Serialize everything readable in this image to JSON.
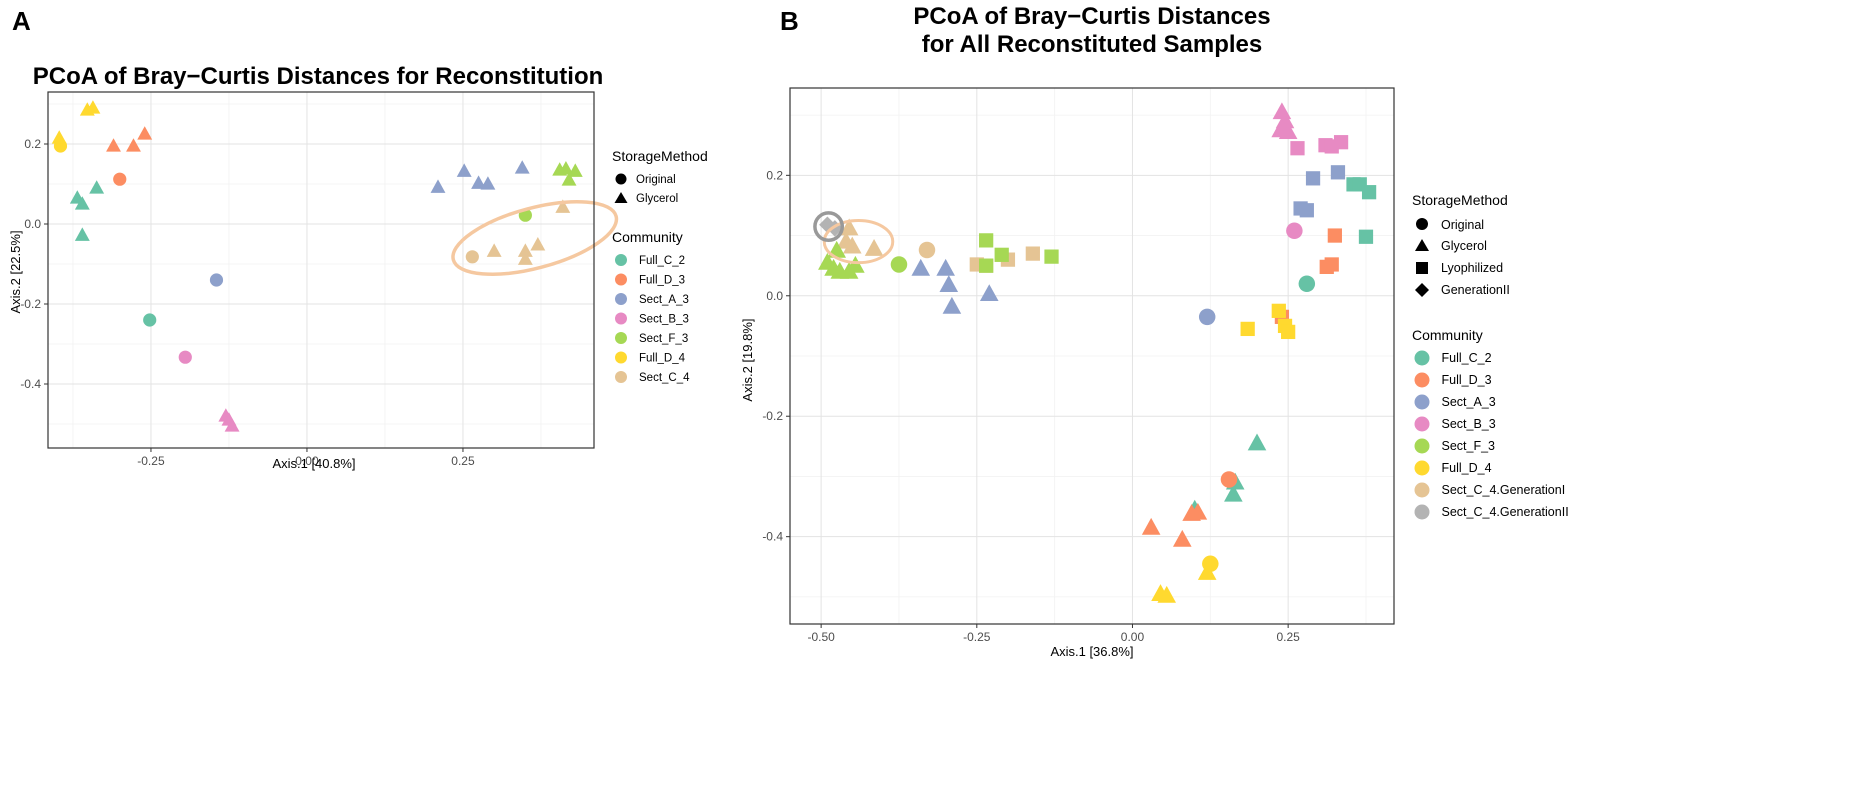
{
  "panel_labels": [
    "A",
    "B"
  ],
  "colors": {
    "Full_C_2": "#66C2A5",
    "Full_D_3": "#FC8D62",
    "Sect_A_3": "#8DA0CB",
    "Sect_B_3": "#E78AC3",
    "Sect_F_3": "#A6D854",
    "Full_D_4": "#FFD92F",
    "Sect_C_4": "#E5C494",
    "Sect_C_4.GenerationI": "#E5C494",
    "Sect_C_4.GenerationII": "#B3B3B3",
    "highlight_ellipse": "#F5C8A0",
    "highlight_circle": "#999999"
  },
  "chart_data": [
    {
      "type": "scatter",
      "title": "PCoA of Bray−Curtis Distances for Reconstitution",
      "xlabel": "Axis.1   [40.8%]",
      "ylabel": "Axis.2   [22.5%]",
      "xlim": [
        -0.415,
        0.46
      ],
      "ylim": [
        -0.56,
        0.33
      ],
      "xticks": [
        -0.25,
        0.0,
        0.25
      ],
      "xtick_labels": [
        "-0.25",
        "0.00",
        "0.25"
      ],
      "yticks": [
        -0.4,
        -0.2,
        0.0,
        0.2
      ],
      "ytick_labels": [
        "-0.4",
        "-0.2",
        "0.0",
        "0.2"
      ],
      "legend_storage": {
        "title": "StorageMethod",
        "items": [
          {
            "label": "Original",
            "shape": "circle"
          },
          {
            "label": "Glycerol",
            "shape": "triangle"
          }
        ]
      },
      "legend_community": {
        "title": "Community",
        "items": [
          "Full_C_2",
          "Full_D_3",
          "Sect_A_3",
          "Sect_B_3",
          "Sect_F_3",
          "Full_D_4",
          "Sect_C_4"
        ]
      },
      "highlight": {
        "shape": "ellipse",
        "cx": 0.365,
        "cy": -0.035,
        "rx": 0.135,
        "ry": 0.075,
        "angle": -15
      },
      "points": [
        {
          "x": -0.395,
          "y": 0.195,
          "community": "Full_D_4",
          "storage": "Original"
        },
        {
          "x": -0.397,
          "y": 0.215,
          "community": "Full_D_4",
          "storage": "Glycerol"
        },
        {
          "x": -0.352,
          "y": 0.285,
          "community": "Full_D_4",
          "storage": "Glycerol"
        },
        {
          "x": -0.343,
          "y": 0.29,
          "community": "Full_D_4",
          "storage": "Glycerol"
        },
        {
          "x": -0.31,
          "y": 0.195,
          "community": "Full_D_3",
          "storage": "Glycerol"
        },
        {
          "x": -0.278,
          "y": 0.195,
          "community": "Full_D_3",
          "storage": "Glycerol"
        },
        {
          "x": -0.26,
          "y": 0.225,
          "community": "Full_D_3",
          "storage": "Glycerol"
        },
        {
          "x": -0.3,
          "y": 0.112,
          "community": "Full_D_3",
          "storage": "Original"
        },
        {
          "x": -0.337,
          "y": 0.09,
          "community": "Full_C_2",
          "storage": "Glycerol"
        },
        {
          "x": -0.368,
          "y": 0.065,
          "community": "Full_C_2",
          "storage": "Glycerol"
        },
        {
          "x": -0.36,
          "y": 0.05,
          "community": "Full_C_2",
          "storage": "Glycerol"
        },
        {
          "x": -0.36,
          "y": -0.028,
          "community": "Full_C_2",
          "storage": "Glycerol"
        },
        {
          "x": -0.252,
          "y": -0.24,
          "community": "Full_C_2",
          "storage": "Original"
        },
        {
          "x": -0.145,
          "y": -0.14,
          "community": "Sect_A_3",
          "storage": "Original"
        },
        {
          "x": -0.195,
          "y": -0.333,
          "community": "Sect_B_3",
          "storage": "Original"
        },
        {
          "x": -0.13,
          "y": -0.48,
          "community": "Sect_B_3",
          "storage": "Glycerol"
        },
        {
          "x": -0.125,
          "y": -0.49,
          "community": "Sect_B_3",
          "storage": "Glycerol"
        },
        {
          "x": -0.12,
          "y": -0.505,
          "community": "Sect_B_3",
          "storage": "Glycerol"
        },
        {
          "x": 0.21,
          "y": 0.092,
          "community": "Sect_A_3",
          "storage": "Glycerol"
        },
        {
          "x": 0.252,
          "y": 0.132,
          "community": "Sect_A_3",
          "storage": "Glycerol"
        },
        {
          "x": 0.275,
          "y": 0.102,
          "community": "Sect_A_3",
          "storage": "Glycerol"
        },
        {
          "x": 0.29,
          "y": 0.1,
          "community": "Sect_A_3",
          "storage": "Glycerol"
        },
        {
          "x": 0.345,
          "y": 0.14,
          "community": "Sect_A_3",
          "storage": "Glycerol"
        },
        {
          "x": 0.405,
          "y": 0.135,
          "community": "Sect_F_3",
          "storage": "Glycerol"
        },
        {
          "x": 0.415,
          "y": 0.138,
          "community": "Sect_F_3",
          "storage": "Glycerol"
        },
        {
          "x": 0.43,
          "y": 0.132,
          "community": "Sect_F_3",
          "storage": "Glycerol"
        },
        {
          "x": 0.42,
          "y": 0.11,
          "community": "Sect_F_3",
          "storage": "Glycerol"
        },
        {
          "x": 0.35,
          "y": 0.022,
          "community": "Sect_F_3",
          "storage": "Original"
        },
        {
          "x": 0.265,
          "y": -0.082,
          "community": "Sect_C_4",
          "storage": "Original"
        },
        {
          "x": 0.3,
          "y": -0.068,
          "community": "Sect_C_4",
          "storage": "Glycerol"
        },
        {
          "x": 0.35,
          "y": -0.068,
          "community": "Sect_C_4",
          "storage": "Glycerol"
        },
        {
          "x": 0.35,
          "y": -0.088,
          "community": "Sect_C_4",
          "storage": "Glycerol"
        },
        {
          "x": 0.37,
          "y": -0.052,
          "community": "Sect_C_4",
          "storage": "Glycerol"
        },
        {
          "x": 0.41,
          "y": 0.042,
          "community": "Sect_C_4",
          "storage": "Glycerol"
        }
      ]
    },
    {
      "type": "scatter",
      "title_lines": [
        "PCoA of Bray−Curtis Distances",
        "for All Reconstituted Samples"
      ],
      "xlabel": "Axis.1   [36.8%]",
      "ylabel": "Axis.2   [19.8%]",
      "xlim": [
        -0.55,
        0.42
      ],
      "ylim": [
        -0.545,
        0.345
      ],
      "xticks": [
        -0.5,
        -0.25,
        0.0,
        0.25
      ],
      "xtick_labels": [
        "-0.50",
        "-0.25",
        "0.00",
        "0.25"
      ],
      "yticks": [
        -0.4,
        -0.2,
        0.0,
        0.2
      ],
      "ytick_labels": [
        "-0.4",
        "-0.2",
        "0.0",
        "0.2"
      ],
      "legend_storage": {
        "title": "StorageMethod",
        "items": [
          {
            "label": "Original",
            "shape": "circle"
          },
          {
            "label": "Glycerol",
            "shape": "triangle"
          },
          {
            "label": "Lyophilized",
            "shape": "square"
          },
          {
            "label": "GenerationII",
            "shape": "diamond"
          }
        ]
      },
      "legend_community": {
        "title": "Community",
        "items": [
          "Full_C_2",
          "Full_D_3",
          "Sect_A_3",
          "Sect_B_3",
          "Sect_F_3",
          "Full_D_4",
          "Sect_C_4.GenerationI",
          "Sect_C_4.GenerationII"
        ]
      },
      "highlight_ellipse": {
        "cx": -0.44,
        "cy": 0.09,
        "rx": 0.055,
        "ry": 0.035
      },
      "highlight_circle": {
        "cx": -0.488,
        "cy": 0.115,
        "r": 0.022
      },
      "points": [
        {
          "x": -0.49,
          "y": 0.118,
          "community": "Sect_C_4.GenerationII",
          "storage": "GenerationII"
        },
        {
          "x": -0.478,
          "y": 0.112,
          "community": "Sect_C_4.GenerationII",
          "storage": "GenerationII"
        },
        {
          "x": -0.455,
          "y": 0.112,
          "community": "Sect_C_4.GenerationI",
          "storage": "Glycerol"
        },
        {
          "x": -0.46,
          "y": 0.09,
          "community": "Sect_C_4.GenerationI",
          "storage": "Glycerol"
        },
        {
          "x": -0.45,
          "y": 0.082,
          "community": "Sect_C_4.GenerationI",
          "storage": "Glycerol"
        },
        {
          "x": -0.415,
          "y": 0.078,
          "community": "Sect_C_4.GenerationI",
          "storage": "Glycerol"
        },
        {
          "x": -0.33,
          "y": 0.076,
          "community": "Sect_C_4.GenerationI",
          "storage": "Original"
        },
        {
          "x": -0.25,
          "y": 0.052,
          "community": "Sect_C_4.GenerationI",
          "storage": "Lyophilized"
        },
        {
          "x": -0.235,
          "y": 0.05,
          "community": "Sect_C_4.GenerationI",
          "storage": "Lyophilized"
        },
        {
          "x": -0.2,
          "y": 0.06,
          "community": "Sect_C_4.GenerationI",
          "storage": "Lyophilized"
        },
        {
          "x": -0.16,
          "y": 0.07,
          "community": "Sect_C_4.GenerationI",
          "storage": "Lyophilized"
        },
        {
          "x": -0.49,
          "y": 0.055,
          "community": "Sect_F_3",
          "storage": "Glycerol"
        },
        {
          "x": -0.48,
          "y": 0.045,
          "community": "Sect_F_3",
          "storage": "Glycerol"
        },
        {
          "x": -0.47,
          "y": 0.04,
          "community": "Sect_F_3",
          "storage": "Glycerol"
        },
        {
          "x": -0.455,
          "y": 0.04,
          "community": "Sect_F_3",
          "storage": "Glycerol"
        },
        {
          "x": -0.445,
          "y": 0.05,
          "community": "Sect_F_3",
          "storage": "Glycerol"
        },
        {
          "x": -0.475,
          "y": 0.075,
          "community": "Sect_F_3",
          "storage": "Glycerol"
        },
        {
          "x": -0.375,
          "y": 0.052,
          "community": "Sect_F_3",
          "storage": "Original"
        },
        {
          "x": -0.235,
          "y": 0.092,
          "community": "Sect_F_3",
          "storage": "Lyophilized"
        },
        {
          "x": -0.235,
          "y": 0.05,
          "community": "Sect_F_3",
          "storage": "Lyophilized"
        },
        {
          "x": -0.21,
          "y": 0.068,
          "community": "Sect_F_3",
          "storage": "Lyophilized"
        },
        {
          "x": -0.13,
          "y": 0.065,
          "community": "Sect_F_3",
          "storage": "Lyophilized"
        },
        {
          "x": -0.34,
          "y": 0.045,
          "community": "Sect_A_3",
          "storage": "Glycerol"
        },
        {
          "x": -0.3,
          "y": 0.045,
          "community": "Sect_A_3",
          "storage": "Glycerol"
        },
        {
          "x": -0.295,
          "y": 0.018,
          "community": "Sect_A_3",
          "storage": "Glycerol"
        },
        {
          "x": -0.29,
          "y": -0.018,
          "community": "Sect_A_3",
          "storage": "Glycerol"
        },
        {
          "x": -0.23,
          "y": 0.003,
          "community": "Sect_A_3",
          "storage": "Glycerol"
        },
        {
          "x": 0.12,
          "y": -0.035,
          "community": "Sect_A_3",
          "storage": "Original"
        },
        {
          "x": 0.27,
          "y": 0.145,
          "community": "Sect_A_3",
          "storage": "Lyophilized"
        },
        {
          "x": 0.28,
          "y": 0.142,
          "community": "Sect_A_3",
          "storage": "Lyophilized"
        },
        {
          "x": 0.29,
          "y": 0.195,
          "community": "Sect_A_3",
          "storage": "Lyophilized"
        },
        {
          "x": 0.33,
          "y": 0.205,
          "community": "Sect_A_3",
          "storage": "Lyophilized"
        },
        {
          "x": 0.24,
          "y": 0.305,
          "community": "Sect_B_3",
          "storage": "Glycerol"
        },
        {
          "x": 0.245,
          "y": 0.29,
          "community": "Sect_B_3",
          "storage": "Glycerol"
        },
        {
          "x": 0.238,
          "y": 0.275,
          "community": "Sect_B_3",
          "storage": "Glycerol"
        },
        {
          "x": 0.25,
          "y": 0.272,
          "community": "Sect_B_3",
          "storage": "Glycerol"
        },
        {
          "x": 0.265,
          "y": 0.245,
          "community": "Sect_B_3",
          "storage": "Lyophilized"
        },
        {
          "x": 0.31,
          "y": 0.25,
          "community": "Sect_B_3",
          "storage": "Lyophilized"
        },
        {
          "x": 0.32,
          "y": 0.248,
          "community": "Sect_B_3",
          "storage": "Lyophilized"
        },
        {
          "x": 0.335,
          "y": 0.255,
          "community": "Sect_B_3",
          "storage": "Lyophilized"
        },
        {
          "x": 0.26,
          "y": 0.108,
          "community": "Sect_B_3",
          "storage": "Original"
        },
        {
          "x": 0.355,
          "y": 0.185,
          "community": "Full_C_2",
          "storage": "Lyophilized"
        },
        {
          "x": 0.365,
          "y": 0.185,
          "community": "Full_C_2",
          "storage": "Lyophilized"
        },
        {
          "x": 0.38,
          "y": 0.172,
          "community": "Full_C_2",
          "storage": "Lyophilized"
        },
        {
          "x": 0.375,
          "y": 0.098,
          "community": "Full_C_2",
          "storage": "Lyophilized"
        },
        {
          "x": 0.28,
          "y": 0.02,
          "community": "Full_C_2",
          "storage": "Original"
        },
        {
          "x": 0.2,
          "y": -0.245,
          "community": "Full_C_2",
          "storage": "Glycerol"
        },
        {
          "x": 0.165,
          "y": -0.31,
          "community": "Full_C_2",
          "storage": "Glycerol"
        },
        {
          "x": 0.162,
          "y": -0.33,
          "community": "Full_C_2",
          "storage": "Glycerol"
        },
        {
          "x": 0.1,
          "y": -0.355,
          "community": "Full_C_2",
          "storage": "Glycerol"
        },
        {
          "x": 0.325,
          "y": 0.1,
          "community": "Full_D_3",
          "storage": "Lyophilized"
        },
        {
          "x": 0.32,
          "y": 0.052,
          "community": "Full_D_3",
          "storage": "Lyophilized"
        },
        {
          "x": 0.312,
          "y": 0.048,
          "community": "Full_D_3",
          "storage": "Lyophilized"
        },
        {
          "x": 0.24,
          "y": -0.035,
          "community": "Full_D_3",
          "storage": "Lyophilized"
        },
        {
          "x": 0.155,
          "y": -0.305,
          "community": "Full_D_3",
          "storage": "Original"
        },
        {
          "x": 0.095,
          "y": -0.362,
          "community": "Full_D_3",
          "storage": "Glycerol"
        },
        {
          "x": 0.105,
          "y": -0.36,
          "community": "Full_D_3",
          "storage": "Glycerol"
        },
        {
          "x": 0.03,
          "y": -0.385,
          "community": "Full_D_3",
          "storage": "Glycerol"
        },
        {
          "x": 0.08,
          "y": -0.405,
          "community": "Full_D_3",
          "storage": "Glycerol"
        },
        {
          "x": 0.235,
          "y": -0.025,
          "community": "Full_D_4",
          "storage": "Lyophilized"
        },
        {
          "x": 0.185,
          "y": -0.055,
          "community": "Full_D_4",
          "storage": "Lyophilized"
        },
        {
          "x": 0.245,
          "y": -0.05,
          "community": "Full_D_4",
          "storage": "Lyophilized"
        },
        {
          "x": 0.25,
          "y": -0.06,
          "community": "Full_D_4",
          "storage": "Lyophilized"
        },
        {
          "x": 0.125,
          "y": -0.445,
          "community": "Full_D_4",
          "storage": "Original"
        },
        {
          "x": 0.12,
          "y": -0.46,
          "community": "Full_D_4",
          "storage": "Glycerol"
        },
        {
          "x": 0.045,
          "y": -0.495,
          "community": "Full_D_4",
          "storage": "Glycerol"
        },
        {
          "x": 0.055,
          "y": -0.498,
          "community": "Full_D_4",
          "storage": "Glycerol"
        }
      ]
    }
  ]
}
